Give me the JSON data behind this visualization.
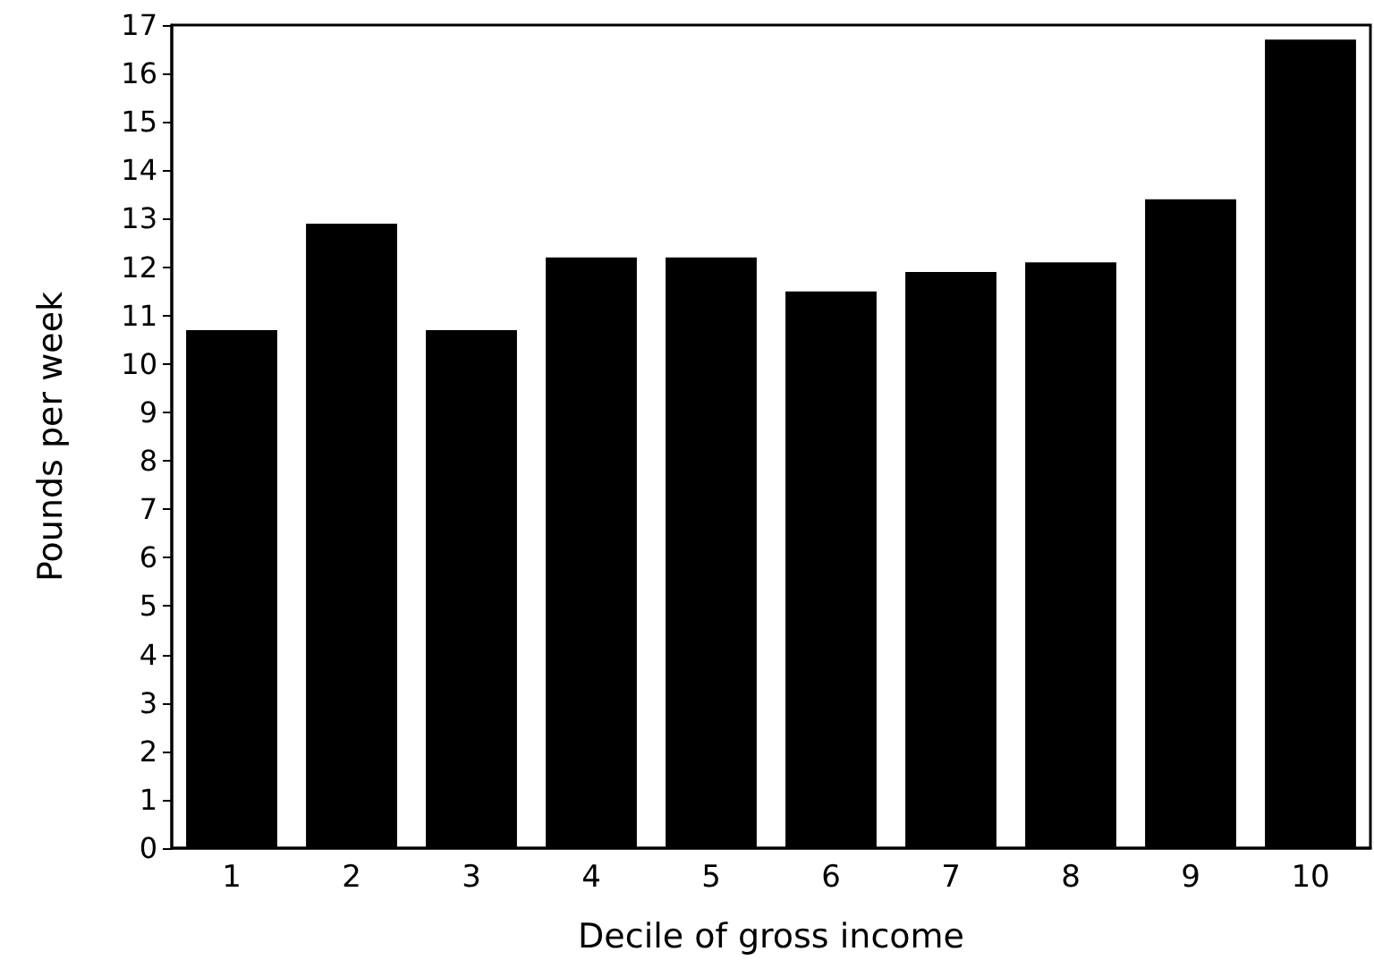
{
  "chart_data": {
    "type": "bar",
    "xlabel": "Decile of gross income",
    "ylabel": "Pounds per week",
    "categories": [
      "1",
      "2",
      "3",
      "4",
      "5",
      "6",
      "7",
      "8",
      "9",
      "10"
    ],
    "values": [
      10.7,
      12.9,
      10.7,
      12.2,
      12.2,
      11.5,
      11.9,
      12.1,
      13.4,
      16.7
    ],
    "color": "#000000",
    "ylim": [
      0,
      17
    ],
    "yticks": [
      0,
      1,
      2,
      3,
      4,
      5,
      6,
      7,
      8,
      9,
      10,
      11,
      12,
      13,
      14,
      15,
      16,
      17
    ],
    "grid": false
  }
}
